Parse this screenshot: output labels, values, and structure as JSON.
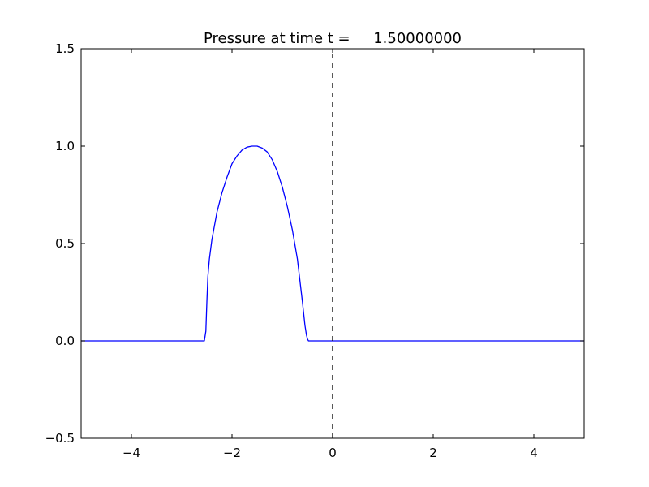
{
  "chart_data": {
    "type": "line",
    "title": "Pressure at time t =     1.50000000",
    "xlabel": "",
    "ylabel": "",
    "xlim": [
      -5,
      5
    ],
    "ylim": [
      -0.5,
      1.5
    ],
    "x_ticks": [
      -4,
      -2,
      0,
      2,
      4
    ],
    "x_tick_labels": [
      "−4",
      "−2",
      "0",
      "2",
      "4"
    ],
    "y_ticks": [
      -0.5,
      0.0,
      0.5,
      1.0,
      1.5
    ],
    "y_tick_labels": [
      "−0.5",
      "0.0",
      "0.5",
      "1.0",
      "1.5"
    ],
    "grid": false,
    "legend": "none",
    "series": [
      {
        "color": "#0000ff",
        "style": "solid",
        "x": [
          -5.0,
          -2.55,
          -2.52,
          -2.5,
          -2.48,
          -2.45,
          -2.4,
          -2.3,
          -2.2,
          -2.1,
          -2.0,
          -1.9,
          -1.8,
          -1.7,
          -1.6,
          -1.5,
          -1.4,
          -1.3,
          -1.2,
          -1.1,
          -1.0,
          -0.9,
          -0.8,
          -0.7,
          -0.6,
          -0.55,
          -0.52,
          -0.5,
          -0.48,
          -0.45,
          5.0
        ],
        "y": [
          0.0,
          0.0,
          0.05,
          0.2,
          0.33,
          0.42,
          0.52,
          0.66,
          0.76,
          0.84,
          0.91,
          0.95,
          0.98,
          0.995,
          1.0,
          1.0,
          0.99,
          0.97,
          0.93,
          0.87,
          0.79,
          0.69,
          0.57,
          0.42,
          0.2,
          0.08,
          0.03,
          0.01,
          0.0,
          0.0,
          0.0
        ]
      },
      {
        "color": "#000000",
        "style": "dashed",
        "x": [
          0,
          0
        ],
        "y": [
          -0.5,
          1.5
        ]
      }
    ]
  }
}
